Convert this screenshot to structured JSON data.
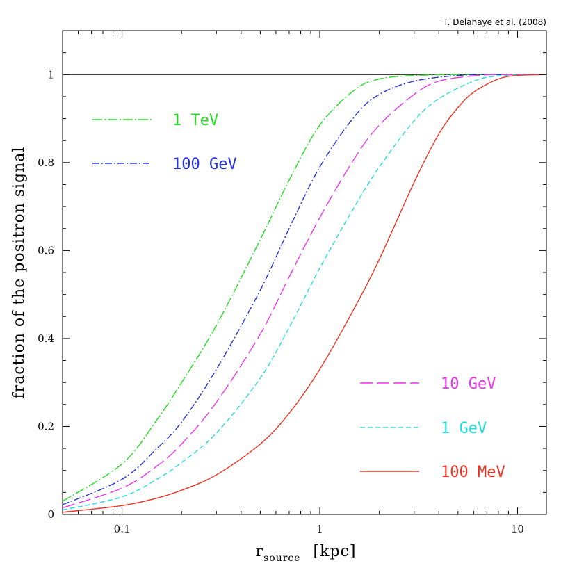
{
  "chart_data": {
    "type": "line",
    "credit": "T. Delahaye et al. (2008)",
    "xlabel": {
      "main": "r",
      "sub": "source",
      "unit": "[kpc]"
    },
    "ylabel": "fraction of the positron signal",
    "xscale": "log",
    "xlim": [
      0.05,
      14
    ],
    "ylim": [
      0,
      1.1
    ],
    "x_ticks": [
      {
        "value": 0.1,
        "label": "0.1"
      },
      {
        "value": 1,
        "label": "1"
      },
      {
        "value": 10,
        "label": "10"
      }
    ],
    "y_ticks": [
      {
        "value": 0,
        "label": "0"
      },
      {
        "value": 0.2,
        "label": "0.2"
      },
      {
        "value": 0.4,
        "label": "0.4"
      },
      {
        "value": 0.6,
        "label": "0.6"
      },
      {
        "value": 0.8,
        "label": "0.8"
      },
      {
        "value": 1,
        "label": "1"
      }
    ],
    "reference_line": 1,
    "legend_upper": [
      "1 TeV",
      "100 GeV"
    ],
    "legend_lower": [
      "10 GeV",
      "1 GeV",
      "100 MeV"
    ],
    "series": [
      {
        "name": "1 TeV",
        "color": "#22dd22",
        "dash": "14 3 2 3",
        "x": [
          0.05,
          0.1,
          0.15,
          0.2,
          0.3,
          0.5,
          0.7,
          1.0,
          1.5,
          2.0,
          3.0,
          5.0,
          8.0,
          13.5
        ],
        "y": [
          0.03,
          0.115,
          0.215,
          0.3,
          0.43,
          0.625,
          0.76,
          0.885,
          0.965,
          0.99,
          0.998,
          1.0,
          1.0,
          1.0
        ]
      },
      {
        "name": "100 GeV",
        "color": "#2233dd",
        "dash": "10 3 2 3",
        "x": [
          0.05,
          0.1,
          0.15,
          0.2,
          0.3,
          0.5,
          0.7,
          1.0,
          1.5,
          2.0,
          3.0,
          5.0,
          8.0,
          13.5
        ],
        "y": [
          0.022,
          0.08,
          0.15,
          0.21,
          0.33,
          0.51,
          0.65,
          0.79,
          0.905,
          0.955,
          0.985,
          0.998,
          1.0,
          1.0
        ]
      },
      {
        "name": "10 GeV",
        "color": "#ee33ee",
        "dash": "18 6",
        "x": [
          0.05,
          0.1,
          0.15,
          0.2,
          0.3,
          0.5,
          0.7,
          1.0,
          1.5,
          2.0,
          3.0,
          4.0,
          6.0,
          8.0,
          13.5
        ],
        "y": [
          0.015,
          0.06,
          0.11,
          0.16,
          0.255,
          0.41,
          0.54,
          0.675,
          0.81,
          0.885,
          0.955,
          0.985,
          0.997,
          1.0,
          1.0
        ]
      },
      {
        "name": "1 GeV",
        "color": "#22dddd",
        "dash": "7 4",
        "x": [
          0.05,
          0.1,
          0.15,
          0.2,
          0.3,
          0.5,
          0.7,
          1.0,
          1.5,
          2.0,
          3.0,
          4.0,
          6.0,
          8.0,
          13.5
        ],
        "y": [
          0.01,
          0.04,
          0.08,
          0.118,
          0.185,
          0.31,
          0.425,
          0.56,
          0.7,
          0.79,
          0.895,
          0.945,
          0.985,
          0.997,
          1.0
        ]
      },
      {
        "name": "100 MeV",
        "color": "#ee3322",
        "dash": "",
        "x": [
          0.05,
          0.1,
          0.15,
          0.2,
          0.3,
          0.5,
          0.7,
          1.0,
          1.5,
          2.0,
          3.0,
          4.0,
          5.0,
          6.0,
          8.0,
          10.0,
          13.5
        ],
        "y": [
          0.005,
          0.02,
          0.037,
          0.055,
          0.09,
          0.16,
          0.23,
          0.33,
          0.47,
          0.58,
          0.755,
          0.865,
          0.925,
          0.96,
          0.99,
          0.998,
          1.0
        ]
      }
    ]
  }
}
